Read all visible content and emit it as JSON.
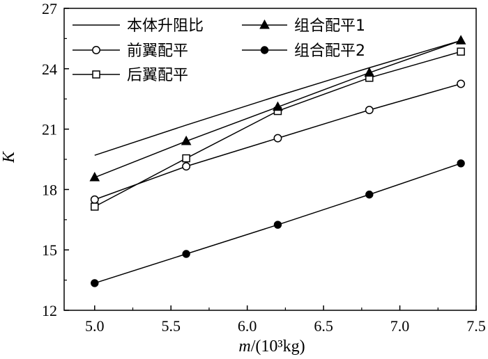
{
  "chart_data": {
    "type": "line",
    "xlabel_var": "m",
    "xlabel_unit": "/(10³kg)",
    "ylabel": "K",
    "xlim": [
      4.8,
      7.5
    ],
    "ylim": [
      12,
      27
    ],
    "xticks": [
      5.0,
      5.5,
      6.0,
      6.5,
      7.0,
      7.5
    ],
    "yticks": [
      12,
      15,
      18,
      21,
      24,
      27
    ],
    "xtick_labels": [
      "5.0",
      "5.5",
      "6.0",
      "6.5",
      "7.0",
      "7.5"
    ],
    "ytick_labels": [
      "12",
      "15",
      "18",
      "21",
      "24",
      "27"
    ],
    "grid": false,
    "legend_position": "top-left",
    "x": [
      5.0,
      5.6,
      6.2,
      6.8,
      7.4
    ],
    "series": [
      {
        "name": "本体升阻比",
        "marker": "none",
        "values": [
          19.7,
          21.2,
          22.65,
          24.05,
          25.4
        ]
      },
      {
        "name": "前翼配平",
        "marker": "circle-open",
        "values": [
          17.5,
          19.15,
          20.55,
          21.95,
          23.25
        ]
      },
      {
        "name": "后翼配平",
        "marker": "square-open",
        "values": [
          17.15,
          19.55,
          21.9,
          23.55,
          24.85
        ]
      },
      {
        "name": "组合配平1",
        "marker": "triangle-filled",
        "values": [
          18.6,
          20.4,
          22.1,
          23.8,
          25.4
        ]
      },
      {
        "name": "组合配平2",
        "marker": "circle-filled",
        "values": [
          13.35,
          14.8,
          16.25,
          17.75,
          19.3
        ]
      }
    ]
  }
}
